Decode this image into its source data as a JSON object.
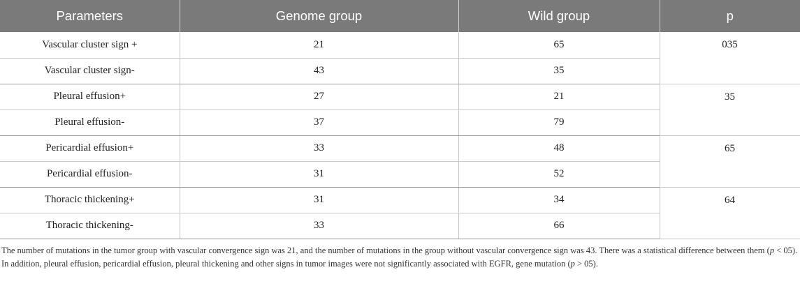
{
  "table": {
    "headers": [
      "Parameters",
      "Genome group",
      "Wild group",
      "p"
    ],
    "groups": [
      {
        "rows": [
          {
            "parameter": "Vascular cluster sign +",
            "genome": "21",
            "wild": "65"
          },
          {
            "parameter": "Vascular cluster sign-",
            "genome": "43",
            "wild": "35"
          }
        ],
        "p": "035"
      },
      {
        "rows": [
          {
            "parameter": "Pleural effusion+",
            "genome": "27",
            "wild": "21"
          },
          {
            "parameter": "Pleural effusion-",
            "genome": "37",
            "wild": "79"
          }
        ],
        "p": "35"
      },
      {
        "rows": [
          {
            "parameter": "Pericardial effusion+",
            "genome": "33",
            "wild": "48"
          },
          {
            "parameter": "Pericardial effusion-",
            "genome": "31",
            "wild": "52"
          }
        ],
        "p": "65"
      },
      {
        "rows": [
          {
            "parameter": "Thoracic thickening+",
            "genome": "31",
            "wild": "34"
          },
          {
            "parameter": "Thoracic thickening-",
            "genome": "33",
            "wild": "66"
          }
        ],
        "p": "64"
      }
    ]
  },
  "footnote": {
    "part1": "The number of mutations in the tumor group with vascular convergence sign was 21, and the number of mutations in the group without vascular convergence sign was 43. There was a statistical difference between them (",
    "p1": "p",
    "part2": " < 05). In addition, pleural effusion, pericardial effusion, pleural thickening and other signs in tumor images were not significantly associated with EGFR, gene mutation (",
    "p2": "p",
    "part3": " > 05)."
  }
}
